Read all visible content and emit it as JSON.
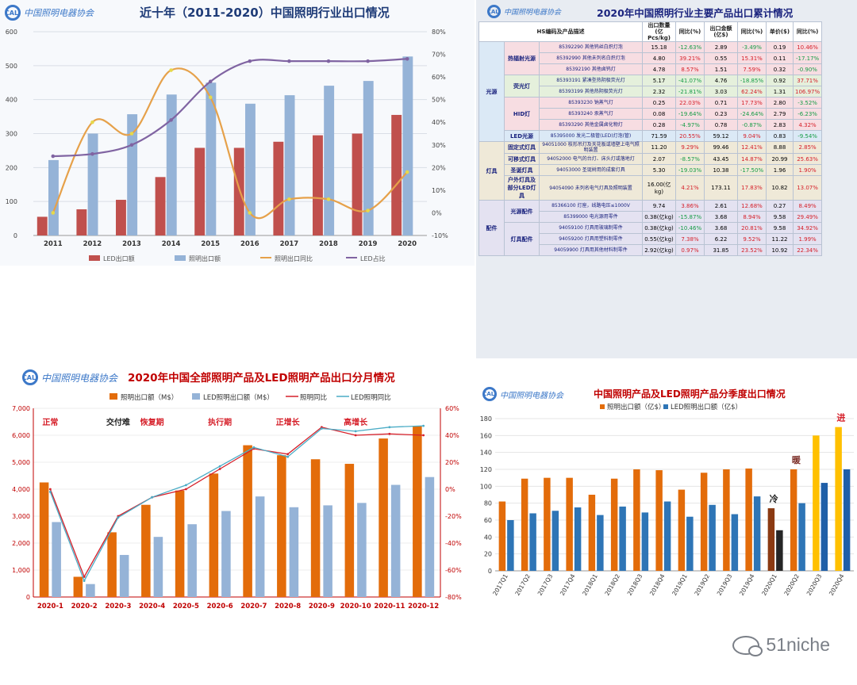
{
  "watermark": "51niche",
  "logo_text": "中国照明电器协会",
  "logo_mark": "CALI",
  "table_panel": {
    "title": "2020年中国照明行业主要产品出口累计情况",
    "headers": [
      "HS编码及产品描述",
      "出口数量(亿Pcs/kg)",
      "同比(%)",
      "出口金额(亿$)",
      "同比(%)",
      "单价($)",
      "同比(%)"
    ],
    "groups": [
      {
        "name": "光源",
        "subgroups": [
          {
            "name": "热辐射光源",
            "rows": [
              [
                "85392290 其他钨丝白炽灯泡",
                "15.18",
                "-12.63%",
                "2.89",
                "-3.49%",
                "0.19",
                "10.46%"
              ],
              [
                "85392990 其他未列名白炽灯泡",
                "4.80",
                "39.21%",
                "0.55",
                "15.31%",
                "0.11",
                "-17.17%"
              ],
              [
                "85392190 其他卤钨灯",
                "4.78",
                "8.57%",
                "1.51",
                "7.59%",
                "0.32",
                "-0.90%"
              ]
            ]
          },
          {
            "name": "荧光灯",
            "rows": [
              [
                "85393191 紧凑型热阴极荧光灯",
                "5.17",
                "-41.07%",
                "4.76",
                "-18.85%",
                "0.92",
                "37.71%"
              ],
              [
                "85393199 其他热阴极荧光灯",
                "2.32",
                "-21.81%",
                "3.03",
                "62.24%",
                "1.31",
                "106.97%"
              ]
            ]
          },
          {
            "name": "HID灯",
            "rows": [
              [
                "85393230 钠蒸气灯",
                "0.25",
                "22.03%",
                "0.71",
                "17.73%",
                "2.80",
                "-3.52%"
              ],
              [
                "85393240 汞蒸气灯",
                "0.08",
                "-19.64%",
                "0.23",
                "-24.64%",
                "2.79",
                "-6.23%"
              ],
              [
                "85393290 其他金属卤化物灯",
                "0.28",
                "-4.97%",
                "0.78",
                "-0.87%",
                "2.83",
                "4.32%"
              ]
            ]
          },
          {
            "name": "LED光源",
            "rows": [
              [
                "85395000 发光二极管(LED)灯泡(管)",
                "71.59",
                "20.55%",
                "59.12",
                "9.04%",
                "0.83",
                "-9.54%"
              ]
            ]
          }
        ]
      },
      {
        "name": "灯具",
        "subgroups": [
          {
            "name": "固定式灯具",
            "rows": [
              [
                "94051000 枝形吊灯及天花板或墙壁上电气照明装置",
                "11.20",
                "9.29%",
                "99.46",
                "12.41%",
                "8.88",
                "2.85%"
              ]
            ]
          },
          {
            "name": "可移式灯具",
            "rows": [
              [
                "94052000 电气的台灯、床头灯或落地灯",
                "2.07",
                "-8.57%",
                "43.45",
                "14.87%",
                "20.99",
                "25.63%"
              ]
            ]
          },
          {
            "name": "圣诞灯具",
            "rows": [
              [
                "94053000 圣诞树用的成套灯具",
                "5.30",
                "-19.03%",
                "10.38",
                "-17.50%",
                "1.96",
                "1.90%"
              ]
            ]
          },
          {
            "name": "户外灯具及部分LED灯具",
            "rows": [
              [
                "94054090 未列名电气灯具及照明装置",
                "16.00(亿kg)",
                "4.21%",
                "173.11",
                "17.83%",
                "10.82",
                "13.07%"
              ]
            ]
          }
        ]
      },
      {
        "name": "配件",
        "subgroups": [
          {
            "name": "光源配件",
            "rows": [
              [
                "85366100 灯座，线路电压≤1000V",
                "9.74",
                "3.86%",
                "2.61",
                "12.68%",
                "0.27",
                "8.49%"
              ],
              [
                "85399000 电光源用零件",
                "0.38(亿kg)",
                "-15.87%",
                "3.68",
                "8.94%",
                "9.58",
                "29.49%"
              ]
            ]
          },
          {
            "name": "灯具配件",
            "rows": [
              [
                "94059100 灯具用玻璃制零件",
                "0.38(亿kg)",
                "-10.46%",
                "3.68",
                "20.81%",
                "9.58",
                "34.92%"
              ],
              [
                "94059200 灯具用塑料制零件",
                "0.55(亿kg)",
                "7.38%",
                "6.22",
                "9.52%",
                "11.22",
                "1.99%"
              ],
              [
                "94059900 灯具用其他材料制零件",
                "2.92(亿kg)",
                "0.97%",
                "31.85",
                "23.52%",
                "10.92",
                "22.34%"
              ]
            ]
          }
        ]
      }
    ]
  },
  "chart_data": [
    {
      "type": "bar",
      "title": "近十年（2011-2020）中国照明行业出口情况",
      "categories": [
        "2011",
        "2012",
        "2013",
        "2014",
        "2015",
        "2016",
        "2017",
        "2018",
        "2019",
        "2020"
      ],
      "series": [
        {
          "name": "LED出口额",
          "kind": "bar",
          "axis": "left",
          "color": "#c0504d",
          "values": [
            55,
            77,
            105,
            172,
            258,
            258,
            276,
            295,
            300,
            355
          ]
        },
        {
          "name": "照明出口额",
          "kind": "bar",
          "axis": "left",
          "color": "#95b3d7",
          "values": [
            222,
            300,
            357,
            415,
            450,
            388,
            413,
            441,
            455,
            527
          ]
        },
        {
          "name": "照明出口同比",
          "kind": "line",
          "axis": "right",
          "color": "#e6a14a",
          "marker": "#e6d94a",
          "values": [
            0,
            40,
            35,
            63,
            51,
            0,
            6,
            6,
            1,
            18
          ]
        },
        {
          "name": "LED占比",
          "kind": "line",
          "axis": "right",
          "color": "#8064a2",
          "marker": "#8064a2",
          "values": [
            25,
            26,
            30,
            41,
            58,
            67,
            67,
            67,
            67,
            68
          ]
        }
      ],
      "ylim": [
        0,
        600
      ],
      "yticks": [
        0,
        100,
        200,
        300,
        400,
        500,
        600
      ],
      "y2lim": [
        -10,
        80
      ],
      "y2ticks": [
        "-10%",
        "0%",
        "10%",
        "20%",
        "30%",
        "40%",
        "50%",
        "60%",
        "70%",
        "80%"
      ],
      "legend": "bottom"
    },
    {
      "type": "bar",
      "title": "2020年中国全部照明产品及LED照明产品出口分月情况",
      "categories": [
        "2020-1",
        "2020-2",
        "2020-3",
        "2020-4",
        "2020-5",
        "2020-6",
        "2020-7",
        "2020-8",
        "2020-9",
        "2020-10",
        "2020-11",
        "2020-12"
      ],
      "series": [
        {
          "name": "照明出口额（M$）",
          "kind": "bar",
          "axis": "left",
          "color": "#e36c0a",
          "values": [
            4250,
            750,
            2400,
            3420,
            3950,
            4580,
            5630,
            5260,
            5110,
            4940,
            5880,
            6350
          ]
        },
        {
          "name": "LED照明出口额（M$）",
          "kind": "bar",
          "axis": "left",
          "color": "#95b3d7",
          "values": [
            2780,
            480,
            1560,
            2230,
            2700,
            3190,
            3730,
            3330,
            3400,
            3490,
            4160,
            4450
          ]
        },
        {
          "name": "照明同比",
          "kind": "line",
          "axis": "right",
          "color": "#d6202a",
          "values": [
            0,
            -65,
            -20,
            -6,
            0,
            15,
            30,
            26,
            46,
            40,
            41,
            40
          ]
        },
        {
          "name": "LED照明同比",
          "kind": "line",
          "axis": "right",
          "color": "#4bacc6",
          "values": [
            -2,
            -68,
            -21,
            -6,
            3,
            17,
            31,
            24,
            45,
            43,
            46,
            47
          ]
        }
      ],
      "ylim": [
        0,
        7000
      ],
      "yticks": [
        "0",
        "1,000",
        "2,000",
        "3,000",
        "4,000",
        "5,000",
        "6,000",
        "7,000"
      ],
      "y2lim": [
        -80,
        60
      ],
      "y2ticks": [
        "-80%",
        "-60%",
        "-40%",
        "-20%",
        "0%",
        "20%",
        "40%",
        "60%"
      ],
      "annotations": [
        {
          "text": "正常",
          "category": "2020-1",
          "color": "#d6202a"
        },
        {
          "text": "交付难",
          "category": "2020-3",
          "color": "#222222"
        },
        {
          "text": "恢复期",
          "category": "2020-4",
          "color": "#d6202a"
        },
        {
          "text": "执行期",
          "category": "2020-6",
          "color": "#d6202a"
        },
        {
          "text": "正增长",
          "category": "2020-8",
          "color": "#d6202a"
        },
        {
          "text": "高增长",
          "category": "2020-10",
          "color": "#d6202a"
        }
      ],
      "legend": "top"
    },
    {
      "type": "bar",
      "title": "中国照明产品及LED照明产品分季度出口情况",
      "categories": [
        "2017Q1",
        "2017Q2",
        "2017Q3",
        "2017Q4",
        "2018Q1",
        "2018Q2",
        "2018Q3",
        "2018Q4",
        "2019Q1",
        "2019Q2",
        "2019Q3",
        "2019Q4",
        "2020Q1",
        "2020Q2",
        "2020Q3",
        "2020Q4"
      ],
      "series": [
        {
          "name": "照明出口额（亿$）",
          "kind": "bar",
          "color": "#e36c0a",
          "colors": [
            "#e36c0a",
            "#e36c0a",
            "#e36c0a",
            "#e36c0a",
            "#e36c0a",
            "#e36c0a",
            "#e36c0a",
            "#e36c0a",
            "#e36c0a",
            "#e36c0a",
            "#e36c0a",
            "#e36c0a",
            "#8b3a12",
            "#e36c0a",
            "#ffc000",
            "#ffc000"
          ],
          "values": [
            82,
            109,
            110,
            110,
            90,
            109,
            120,
            119,
            96,
            116,
            120,
            121,
            74,
            120,
            160,
            170
          ]
        },
        {
          "name": "LED照明出口额（亿$）",
          "kind": "bar",
          "color": "#2e75b6",
          "colors": [
            "#2e75b6",
            "#2e75b6",
            "#2e75b6",
            "#2e75b6",
            "#2e75b6",
            "#2e75b6",
            "#2e75b6",
            "#2e75b6",
            "#2e75b6",
            "#2e75b6",
            "#2e75b6",
            "#2e75b6",
            "#262626",
            "#2e75b6",
            "#1f5fa8",
            "#1f5fa8"
          ],
          "values": [
            60,
            68,
            71,
            75,
            66,
            76,
            69,
            82,
            64,
            78,
            67,
            88,
            48,
            80,
            104,
            120
          ]
        }
      ],
      "ylim": [
        0,
        180
      ],
      "yticks": [
        0,
        20,
        40,
        60,
        80,
        100,
        120,
        140,
        160,
        180
      ],
      "annotations": [
        {
          "text": "冷",
          "category": "2020Q1",
          "color": "#222222"
        },
        {
          "text": "暖",
          "category": "2020Q2",
          "color": "#7b2d26"
        },
        {
          "text": "进",
          "category": "2020Q4",
          "color": "#d6202a"
        }
      ],
      "legend": "top"
    }
  ]
}
